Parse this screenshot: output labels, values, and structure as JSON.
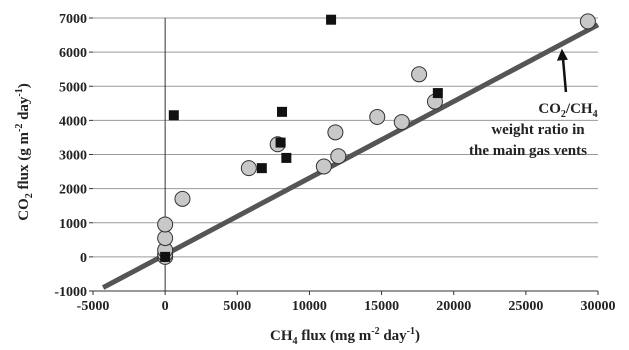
{
  "chart_data": {
    "type": "scatter",
    "xlabel": {
      "base": "CH",
      "sub": "4",
      "rest": " flux (mg m",
      "sup": "-2",
      "end": " day",
      "sup2": "-1",
      "close": ")"
    },
    "ylabel": {
      "base": "CO",
      "sub": "2",
      "rest": " flux (g m",
      "sup": "-2",
      "end": " day",
      "sup2": "-1",
      "close": ")"
    },
    "xlim": [
      -5000,
      30000
    ],
    "ylim": [
      -1000,
      7000
    ],
    "x_ticks": [
      "-5000",
      "0",
      "5000",
      "10000",
      "15000",
      "20000",
      "25000",
      "30000"
    ],
    "y_ticks": [
      "-1000",
      "0",
      "1000",
      "2000",
      "3000",
      "4000",
      "5000",
      "6000",
      "7000"
    ],
    "x_tick_values": [
      -5000,
      0,
      5000,
      10000,
      15000,
      20000,
      25000,
      30000
    ],
    "y_tick_values": [
      -1000,
      0,
      1000,
      2000,
      3000,
      4000,
      5000,
      6000,
      7000
    ],
    "grid": "horizontal",
    "series": [
      {
        "marker": "circle",
        "color": "#c8c8c8",
        "points": [
          [
            0,
            0
          ],
          [
            0,
            80
          ],
          [
            0,
            200
          ],
          [
            0,
            550
          ],
          [
            0,
            950
          ],
          [
            1200,
            1700
          ],
          [
            5800,
            2600
          ],
          [
            7800,
            3300
          ],
          [
            11000,
            2650
          ],
          [
            11800,
            3650
          ],
          [
            12000,
            2950
          ],
          [
            14700,
            4100
          ],
          [
            16400,
            3950
          ],
          [
            17600,
            5350
          ],
          [
            18700,
            4550
          ],
          [
            29300,
            6900
          ]
        ]
      },
      {
        "marker": "square",
        "color": "#111111",
        "points": [
          [
            0,
            0
          ],
          [
            600,
            4150
          ],
          [
            6700,
            2600
          ],
          [
            8000,
            3350
          ],
          [
            8100,
            4250
          ],
          [
            8400,
            2900
          ],
          [
            11500,
            6950
          ],
          [
            18900,
            4800
          ]
        ]
      }
    ],
    "reference_line": {
      "x0": -4300,
      "y0": -900,
      "x1": 30000,
      "y1": 6800,
      "color": "#555555"
    },
    "annotation": {
      "line1_base": "CO",
      "line1_sub": "2",
      "line1_mid": "/CH",
      "line1_sub2": "4",
      "line2": "weight ratio in",
      "line3": "the main gas vents",
      "arrow_to": [
        27500,
        6100
      ]
    }
  }
}
